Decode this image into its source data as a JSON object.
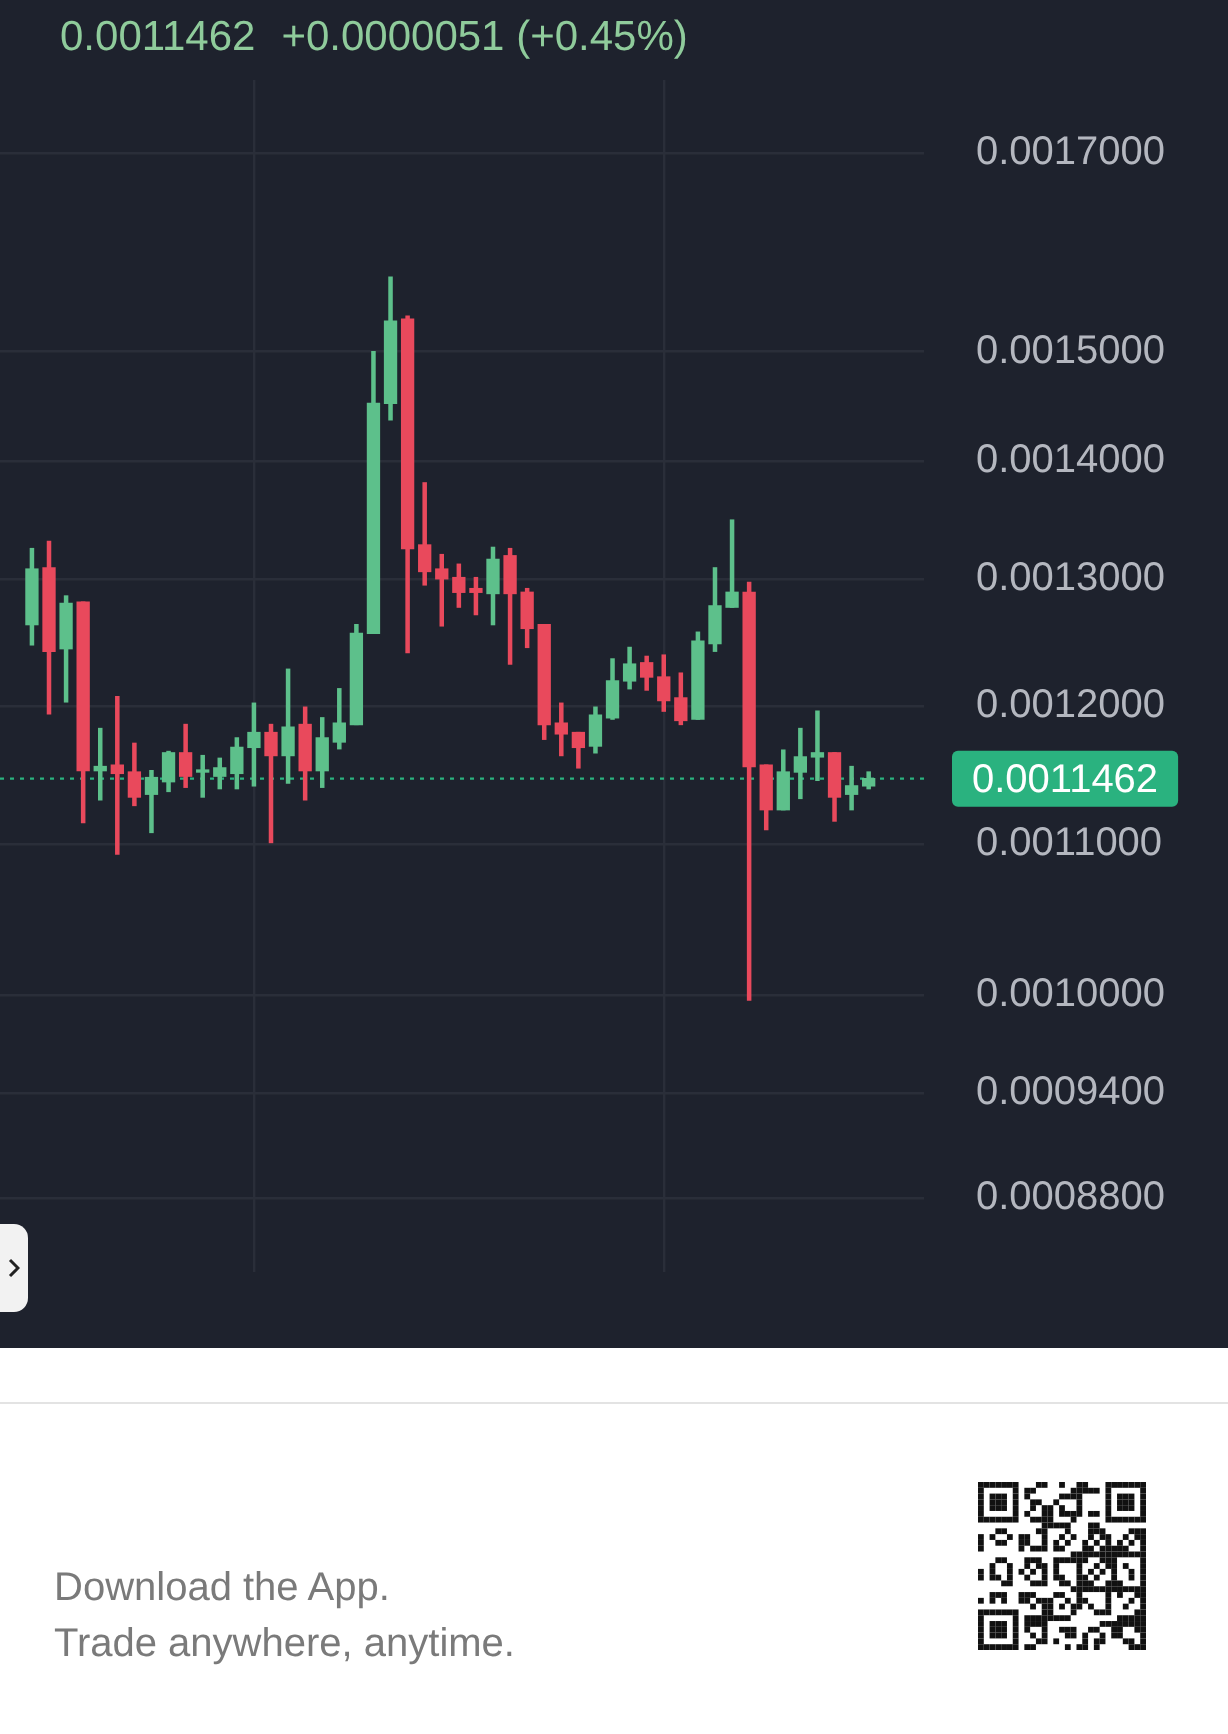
{
  "chart_data": {
    "type": "candlestick",
    "title": "0.0011462",
    "subtitle": "+0.0000051 (+0.45%)",
    "categories": [
      null,
      null,
      null,
      null,
      null,
      null,
      null,
      null,
      null,
      null,
      null,
      null,
      null,
      null,
      null,
      null,
      null,
      null,
      null,
      null,
      null,
      null,
      null,
      null,
      null,
      null,
      null,
      null,
      null,
      null,
      null,
      null,
      null,
      null,
      null,
      null,
      null,
      null,
      null,
      null,
      null,
      null,
      null,
      null,
      null,
      null,
      null,
      null,
      null,
      null
    ],
    "ohlc": [
      [
        0.001263,
        0.001325,
        0.001247,
        0.001308
      ],
      [
        0.001309,
        0.001331,
        0.001194,
        0.001242
      ],
      [
        0.001244,
        0.001286,
        0.001203,
        0.00128
      ],
      [
        0.001281,
        0.001281,
        0.001115,
        0.001152
      ],
      [
        0.001152,
        0.001183,
        0.001131,
        0.001155
      ],
      [
        0.001156,
        0.001207,
        0.001093,
        0.00115
      ],
      [
        0.001151,
        0.001172,
        0.001127,
        0.001133
      ],
      [
        0.001135,
        0.001152,
        0.001108,
        0.001147
      ],
      [
        0.001144,
        0.001166,
        0.001137,
        0.001165
      ],
      [
        0.001165,
        0.001186,
        0.00114,
        0.001148
      ],
      [
        0.001151,
        0.001163,
        0.001133,
        0.001152
      ],
      [
        0.001148,
        0.001161,
        0.001139,
        0.001154
      ],
      [
        0.00115,
        0.001176,
        0.001139,
        0.001169
      ],
      [
        0.001169,
        0.001202,
        0.001141,
        0.00118
      ],
      [
        0.00118,
        0.001186,
        0.001101,
        0.001163
      ],
      [
        0.001163,
        0.001228,
        0.001143,
        0.001184
      ],
      [
        0.001186,
        0.001199,
        0.001131,
        0.001152
      ],
      [
        0.001152,
        0.001191,
        0.00114,
        0.001176
      ],
      [
        0.001173,
        0.001213,
        0.001168,
        0.001187
      ],
      [
        0.001186,
        0.001263,
        0.001186,
        0.001256
      ],
      [
        0.001256,
        0.0015,
        0.001256,
        0.001452
      ],
      [
        0.001452,
        0.001572,
        0.001437,
        0.001529
      ],
      [
        0.001531,
        0.001534,
        0.001241,
        0.001325
      ],
      [
        0.001328,
        0.001381,
        0.001295,
        0.001306
      ],
      [
        0.001308,
        0.00132,
        0.001262,
        0.0013
      ],
      [
        0.001301,
        0.001312,
        0.001277,
        0.001289
      ],
      [
        0.001292,
        0.001301,
        0.001271,
        0.001289
      ],
      [
        0.001288,
        0.001326,
        0.001263,
        0.001316
      ],
      [
        0.001319,
        0.001325,
        0.001232,
        0.001288
      ],
      [
        0.001289,
        0.001292,
        0.001245,
        0.00126
      ],
      [
        0.001263,
        0.001263,
        0.001175,
        0.001186
      ],
      [
        0.001187,
        0.001202,
        0.001163,
        0.001179
      ],
      [
        0.00118,
        0.00118,
        0.001154,
        0.001169
      ],
      [
        0.00117,
        0.001199,
        0.001165,
        0.001193
      ],
      [
        0.001191,
        0.001236,
        0.00119,
        0.001219
      ],
      [
        0.001219,
        0.001245,
        0.001213,
        0.001232
      ],
      [
        0.001233,
        0.001238,
        0.001212,
        0.001222
      ],
      [
        0.001222,
        0.001239,
        0.001196,
        0.001204
      ],
      [
        0.001206,
        0.001225,
        0.001186,
        0.001189
      ],
      [
        0.00119,
        0.001257,
        0.00119,
        0.00125
      ],
      [
        0.001248,
        0.001309,
        0.001242,
        0.001278
      ],
      [
        0.001277,
        0.001349,
        0.001277,
        0.001289
      ],
      [
        0.001289,
        0.001297,
        0.000997,
        0.001155
      ],
      [
        0.001156,
        0.001156,
        0.00111,
        0.001124
      ],
      [
        0.001124,
        0.001167,
        0.001124,
        0.001151
      ],
      [
        0.001151,
        0.001183,
        0.001132,
        0.001162
      ],
      [
        0.001162,
        0.001196,
        0.001145,
        0.001165
      ],
      [
        0.001165,
        0.001165,
        0.001116,
        0.001133
      ],
      [
        0.001135,
        0.001155,
        0.001124,
        0.001141
      ],
      [
        0.001141,
        0.001151,
        0.001139,
        0.0011462
      ]
    ],
    "colors": [
      "#5dc08b",
      "#e9495c",
      "#5dc08b",
      "#e9495c",
      "#5dc08b",
      "#e9495c",
      "#e9495c",
      "#5dc08b",
      "#5dc08b",
      "#e9495c",
      "#5dc08b",
      "#5dc08b",
      "#5dc08b",
      "#5dc08b",
      "#e9495c",
      "#5dc08b",
      "#e9495c",
      "#5dc08b",
      "#5dc08b",
      "#5dc08b",
      "#5dc08b",
      "#5dc08b",
      "#e9495c",
      "#e9495c",
      "#e9495c",
      "#e9495c",
      "#e9495c",
      "#5dc08b",
      "#e9495c",
      "#e9495c",
      "#e9495c",
      "#e9495c",
      "#e9495c",
      "#5dc08b",
      "#5dc08b",
      "#5dc08b",
      "#e9495c",
      "#e9495c",
      "#e9495c",
      "#5dc08b",
      "#5dc08b",
      "#5dc08b",
      "#e9495c",
      "#e9495c",
      "#5dc08b",
      "#5dc08b",
      "#5dc08b",
      "#e9495c",
      "#5dc08b",
      "#5dc08b"
    ],
    "ylim": [
      0.00084,
      0.00178
    ],
    "yticks": [
      {
        "value": 0.0017,
        "label": "0.0017000"
      },
      {
        "value": 0.0015,
        "label": "0.0015000"
      },
      {
        "value": 0.0014,
        "label": "0.0014000"
      },
      {
        "value": 0.0013,
        "label": "0.0013000"
      },
      {
        "value": 0.0012,
        "label": "0.0012000"
      },
      {
        "value": 0.0011,
        "label": "0.0011000"
      },
      {
        "value": 0.001,
        "label": "0.0010000"
      },
      {
        "value": 0.00094,
        "label": "0.0009400"
      },
      {
        "value": 0.00088,
        "label": "0.0008800"
      }
    ],
    "log": true,
    "grid": true,
    "tick_labels": "y",
    "ref_lines": [
      {
        "axis": "y",
        "value": 0.0011462,
        "label": "0.0011462",
        "color": "#2ab27f",
        "line_style": "dotted"
      }
    ],
    "annotations": [
      "Download the App.",
      "Trade anywhere, anytime."
    ]
  }
}
